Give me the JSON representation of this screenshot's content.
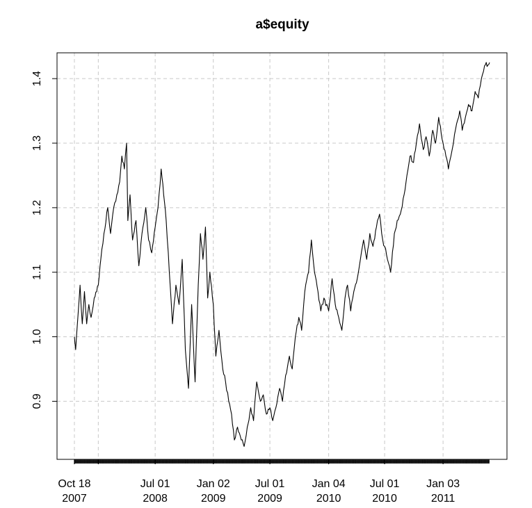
{
  "chart_data": {
    "type": "line",
    "title": "a$equity",
    "xlabel": "",
    "ylabel": "",
    "grid": true,
    "x_range": [
      "2007-10-18",
      "2011-05-31"
    ],
    "ylim": [
      0.81,
      1.44
    ],
    "y_ticks": [
      0.9,
      1.0,
      1.1,
      1.2,
      1.3,
      1.4
    ],
    "y_tick_labels": [
      "0.9",
      "1.0",
      "1.1",
      "1.2",
      "1.3",
      "1.4"
    ],
    "x_ticks": [
      {
        "date": "2007-10-18",
        "label": "Oct 18\n2007"
      },
      {
        "date": "2008-01-02",
        "label": ""
      },
      {
        "date": "2008-07-01",
        "label": "Jul 01\n2008"
      },
      {
        "date": "2009-01-02",
        "label": "Jan 02\n2009"
      },
      {
        "date": "2009-07-01",
        "label": "Jul 01\n2009"
      },
      {
        "date": "2010-01-04",
        "label": "Jan 04\n2010"
      },
      {
        "date": "2010-07-01",
        "label": "Jul 01\n2010"
      },
      {
        "date": "2011-01-03",
        "label": "Jan 03\n2011"
      }
    ],
    "series": [
      {
        "points": [
          [
            "2007-10-18",
            1.0
          ],
          [
            "2007-10-22",
            0.98
          ],
          [
            "2007-10-29",
            1.03
          ],
          [
            "2007-11-05",
            1.08
          ],
          [
            "2007-11-12",
            1.02
          ],
          [
            "2007-11-19",
            1.07
          ],
          [
            "2007-11-26",
            1.02
          ],
          [
            "2007-12-03",
            1.05
          ],
          [
            "2007-12-10",
            1.03
          ],
          [
            "2007-12-20",
            1.06
          ],
          [
            "2008-01-02",
            1.08
          ],
          [
            "2008-01-10",
            1.12
          ],
          [
            "2008-01-20",
            1.16
          ],
          [
            "2008-02-01",
            1.2
          ],
          [
            "2008-02-10",
            1.16
          ],
          [
            "2008-02-20",
            1.2
          ],
          [
            "2008-03-01",
            1.22
          ],
          [
            "2008-03-10",
            1.24
          ],
          [
            "2008-03-17",
            1.28
          ],
          [
            "2008-03-25",
            1.26
          ],
          [
            "2008-04-01",
            1.3
          ],
          [
            "2008-04-05",
            1.18
          ],
          [
            "2008-04-12",
            1.22
          ],
          [
            "2008-04-20",
            1.15
          ],
          [
            "2008-05-01",
            1.18
          ],
          [
            "2008-05-10",
            1.11
          ],
          [
            "2008-05-20",
            1.16
          ],
          [
            "2008-06-01",
            1.2
          ],
          [
            "2008-06-10",
            1.15
          ],
          [
            "2008-06-20",
            1.13
          ],
          [
            "2008-07-01",
            1.17
          ],
          [
            "2008-07-10",
            1.2
          ],
          [
            "2008-07-20",
            1.26
          ],
          [
            "2008-07-28",
            1.22
          ],
          [
            "2008-08-05",
            1.18
          ],
          [
            "2008-08-15",
            1.1
          ],
          [
            "2008-08-25",
            1.02
          ],
          [
            "2008-09-05",
            1.08
          ],
          [
            "2008-09-15",
            1.05
          ],
          [
            "2008-09-25",
            1.12
          ],
          [
            "2008-10-05",
            0.98
          ],
          [
            "2008-10-15",
            0.92
          ],
          [
            "2008-10-25",
            1.05
          ],
          [
            "2008-11-05",
            0.93
          ],
          [
            "2008-11-15",
            1.08
          ],
          [
            "2008-11-22",
            1.16
          ],
          [
            "2008-11-30",
            1.12
          ],
          [
            "2008-12-08",
            1.17
          ],
          [
            "2008-12-15",
            1.06
          ],
          [
            "2008-12-22",
            1.1
          ],
          [
            "2009-01-02",
            1.05
          ],
          [
            "2009-01-10",
            0.97
          ],
          [
            "2009-01-20",
            1.01
          ],
          [
            "2009-02-01",
            0.95
          ],
          [
            "2009-02-10",
            0.93
          ],
          [
            "2009-02-20",
            0.9
          ],
          [
            "2009-03-01",
            0.88
          ],
          [
            "2009-03-10",
            0.84
          ],
          [
            "2009-03-20",
            0.86
          ],
          [
            "2009-04-01",
            0.84
          ],
          [
            "2009-04-10",
            0.83
          ],
          [
            "2009-04-20",
            0.86
          ],
          [
            "2009-05-01",
            0.89
          ],
          [
            "2009-05-10",
            0.87
          ],
          [
            "2009-05-20",
            0.93
          ],
          [
            "2009-06-01",
            0.9
          ],
          [
            "2009-06-10",
            0.91
          ],
          [
            "2009-06-20",
            0.88
          ],
          [
            "2009-07-01",
            0.89
          ],
          [
            "2009-07-10",
            0.87
          ],
          [
            "2009-07-20",
            0.89
          ],
          [
            "2009-08-01",
            0.92
          ],
          [
            "2009-08-10",
            0.9
          ],
          [
            "2009-08-20",
            0.94
          ],
          [
            "2009-09-01",
            0.97
          ],
          [
            "2009-09-10",
            0.95
          ],
          [
            "2009-09-20",
            1.0
          ],
          [
            "2009-10-01",
            1.03
          ],
          [
            "2009-10-10",
            1.01
          ],
          [
            "2009-10-20",
            1.07
          ],
          [
            "2009-11-01",
            1.1
          ],
          [
            "2009-11-10",
            1.15
          ],
          [
            "2009-11-20",
            1.1
          ],
          [
            "2009-12-01",
            1.07
          ],
          [
            "2009-12-10",
            1.04
          ],
          [
            "2009-12-20",
            1.06
          ],
          [
            "2010-01-04",
            1.04
          ],
          [
            "2010-01-15",
            1.09
          ],
          [
            "2010-01-25",
            1.05
          ],
          [
            "2010-02-05",
            1.03
          ],
          [
            "2010-02-15",
            1.01
          ],
          [
            "2010-02-25",
            1.06
          ],
          [
            "2010-03-05",
            1.08
          ],
          [
            "2010-03-15",
            1.04
          ],
          [
            "2010-03-25",
            1.07
          ],
          [
            "2010-04-05",
            1.09
          ],
          [
            "2010-04-15",
            1.12
          ],
          [
            "2010-04-25",
            1.15
          ],
          [
            "2010-05-05",
            1.12
          ],
          [
            "2010-05-15",
            1.16
          ],
          [
            "2010-05-25",
            1.14
          ],
          [
            "2010-06-05",
            1.17
          ],
          [
            "2010-06-15",
            1.19
          ],
          [
            "2010-06-25",
            1.15
          ],
          [
            "2010-07-01",
            1.14
          ],
          [
            "2010-07-10",
            1.12
          ],
          [
            "2010-07-20",
            1.1
          ],
          [
            "2010-08-01",
            1.16
          ],
          [
            "2010-08-10",
            1.18
          ],
          [
            "2010-08-20",
            1.19
          ],
          [
            "2010-09-01",
            1.22
          ],
          [
            "2010-09-10",
            1.25
          ],
          [
            "2010-09-20",
            1.28
          ],
          [
            "2010-10-01",
            1.27
          ],
          [
            "2010-10-10",
            1.3
          ],
          [
            "2010-10-20",
            1.33
          ],
          [
            "2010-11-01",
            1.29
          ],
          [
            "2010-11-10",
            1.31
          ],
          [
            "2010-11-20",
            1.28
          ],
          [
            "2010-12-01",
            1.32
          ],
          [
            "2010-12-10",
            1.3
          ],
          [
            "2010-12-20",
            1.34
          ],
          [
            "2011-01-03",
            1.3
          ],
          [
            "2011-01-12",
            1.28
          ],
          [
            "2011-01-20",
            1.26
          ],
          [
            "2011-01-28",
            1.28
          ],
          [
            "2011-02-05",
            1.3
          ],
          [
            "2011-02-15",
            1.33
          ],
          [
            "2011-02-25",
            1.35
          ],
          [
            "2011-03-05",
            1.32
          ],
          [
            "2011-03-15",
            1.34
          ],
          [
            "2011-03-25",
            1.36
          ],
          [
            "2011-04-05",
            1.35
          ],
          [
            "2011-04-15",
            1.38
          ],
          [
            "2011-04-25",
            1.37
          ],
          [
            "2011-05-05",
            1.4
          ],
          [
            "2011-05-15",
            1.42
          ],
          [
            "2011-05-31",
            1.425
          ]
        ]
      }
    ]
  }
}
